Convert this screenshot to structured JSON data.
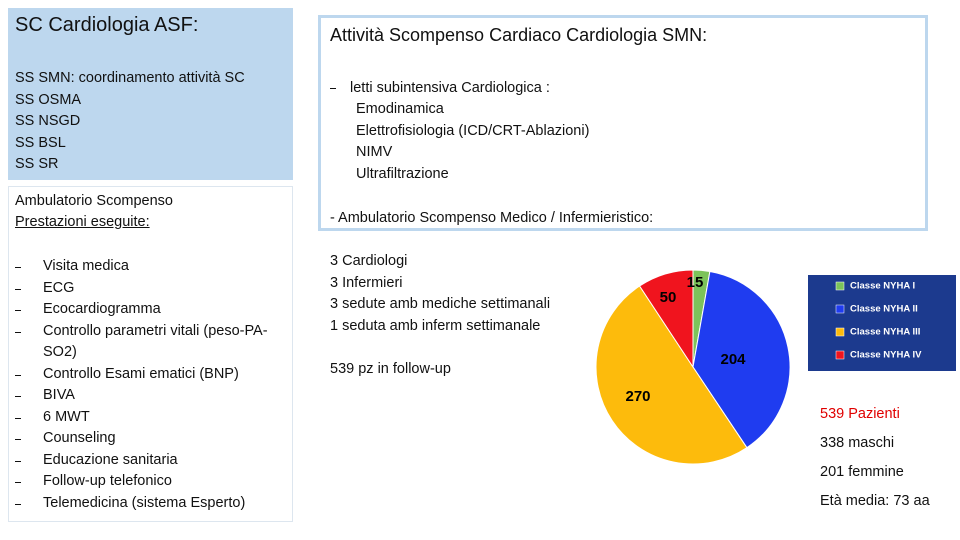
{
  "left": {
    "title": "SC Cardiologia ASF:",
    "lines": [
      "SS SMN: coordinamento attività SC",
      "SS OSMA",
      "SS NSGD",
      "SS BSL",
      "SS SR"
    ],
    "amb_title": "Ambulatorio Scompenso",
    "amb_subtitle": "Prestazioni eseguite:",
    "items": [
      "Visita medica",
      "ECG",
      "Ecocardiogramma",
      "Controllo parametri vitali (peso-PA- SO2)",
      "Controllo Esami ematici (BNP)",
      "BIVA",
      "6 MWT",
      "Counseling",
      "Educazione sanitaria",
      "Follow-up telefonico",
      "Telemedicina (sistema Esperto)"
    ]
  },
  "right": {
    "title": "Attività Scompenso Cardiaco Cardiologia SMN:",
    "beds_heading": "letti subintensiva Cardiologica :",
    "beds_items": [
      "Emodinamica",
      "Elettrofisiologia (ICD/CRT-Ablazioni)",
      "NIMV",
      "Ultrafiltrazione"
    ],
    "amb_heading": "- Ambulatorio Scompenso Medico / Infermieristico:",
    "staff": [
      "3 Cardiologi",
      "3 Infermieri",
      "3 sedute amb mediche settimanali",
      "1 seduta amb inferm settimanale"
    ],
    "followup": "539 pz in follow-up",
    "stats": [
      "539 Pazienti",
      "338 maschi",
      "201 femmine",
      "Età media: 73 aa"
    ]
  },
  "chart_data": {
    "type": "pie",
    "categories": [
      "Classe NYHA I",
      "Classe NYHA II",
      "Classe NYHA III",
      "Classe NYHA IV"
    ],
    "values": [
      15,
      204,
      270,
      50
    ],
    "colors": [
      "#7cc35a",
      "#1f3cf0",
      "#fdbb0c",
      "#f0141e"
    ]
  }
}
